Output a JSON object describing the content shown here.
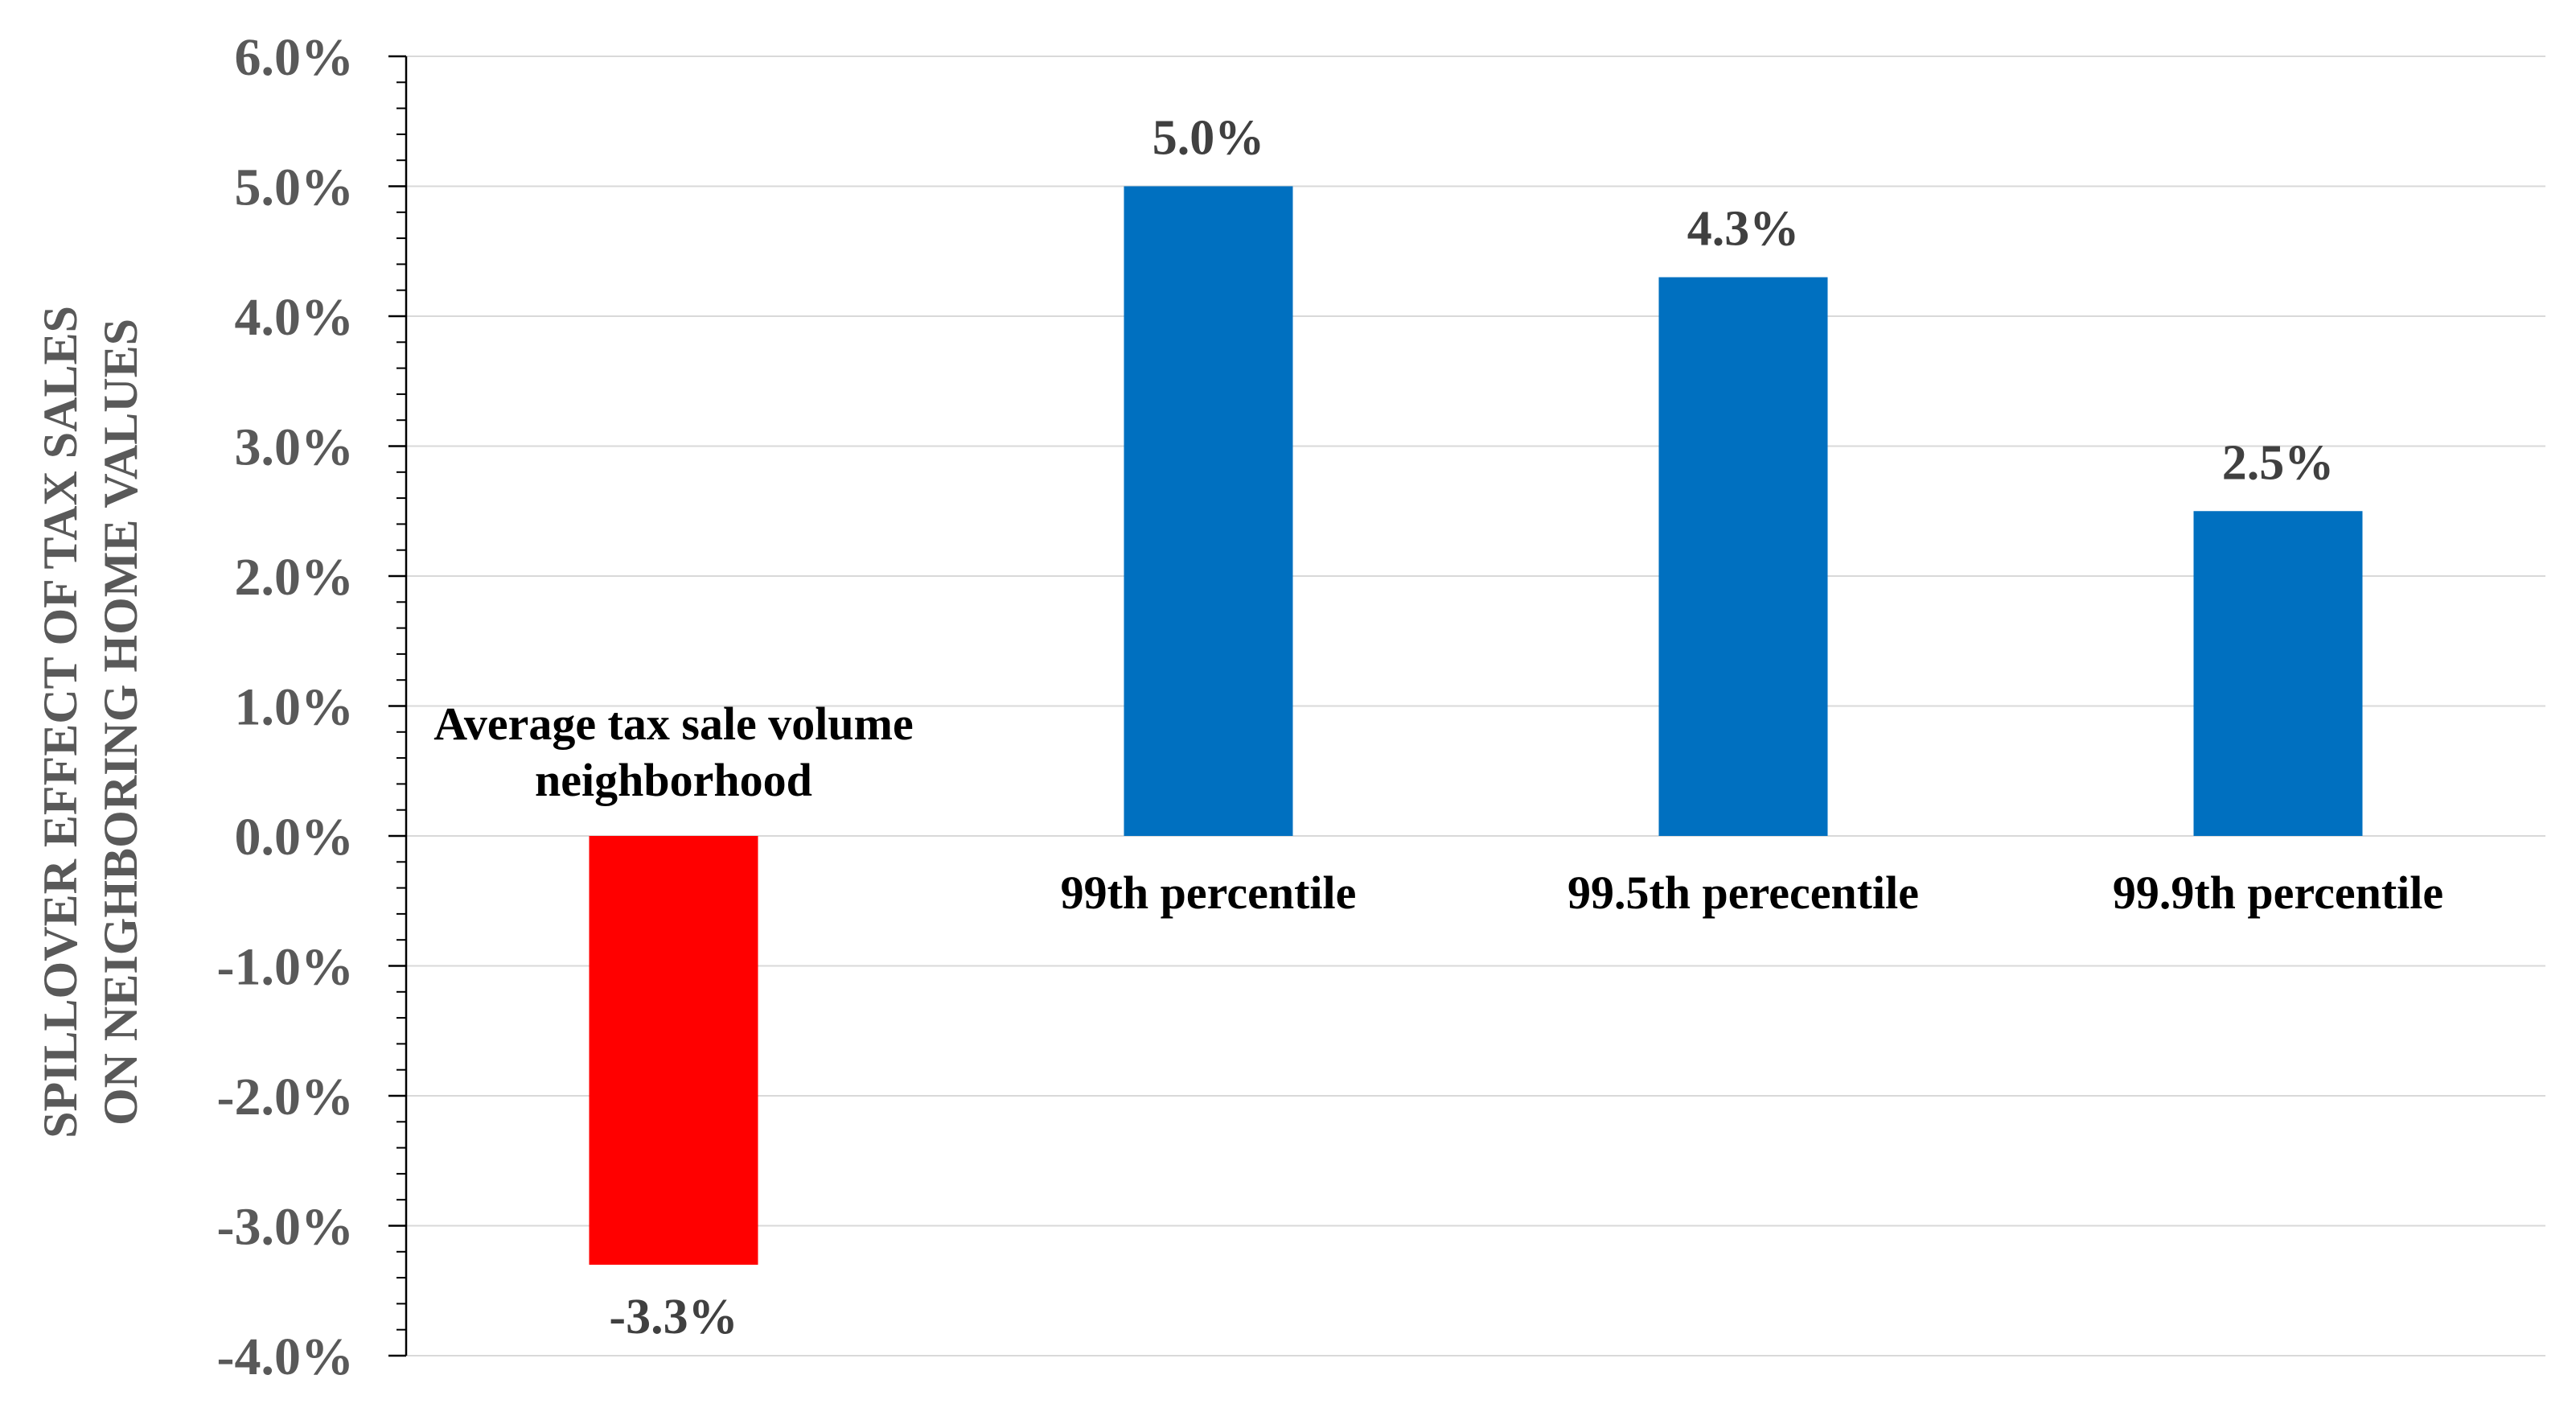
{
  "chart_data": {
    "type": "bar",
    "categories": [
      "Average tax sale volume neighborhood",
      "99th percentile",
      "99.5th perecentile",
      "99.9th percentile"
    ],
    "category_label_lines": [
      [
        "Average tax sale volume",
        "neighborhood"
      ],
      [
        "99th percentile"
      ],
      [
        "99.5th perecentile"
      ],
      [
        "99.9th percentile"
      ]
    ],
    "values": [
      -3.3,
      5.0,
      4.3,
      2.5
    ],
    "data_labels": [
      "-3.3%",
      "5.0%",
      "4.3%",
      "2.5%"
    ],
    "bar_colors": [
      "#ff0000",
      "#0070c0",
      "#0070c0",
      "#0070c0"
    ],
    "ylabel_lines": [
      "SPILLOVER EFFECT OF TAX SALES",
      "ON NEIGHBORING HOME VALUES"
    ],
    "xlabel": "",
    "ylim": [
      -4.0,
      6.0
    ],
    "yticks": [
      6.0,
      5.0,
      4.0,
      3.0,
      2.0,
      1.0,
      0.0,
      -1.0,
      -2.0,
      -3.0,
      -4.0
    ],
    "ytick_labels": [
      "6.0%",
      "5.0%",
      "4.0%",
      "3.0%",
      "2.0%",
      "1.0%",
      "0.0%",
      "-1.0%",
      "-2.0%",
      "-3.0%",
      "-4.0%"
    ],
    "grid": true
  }
}
